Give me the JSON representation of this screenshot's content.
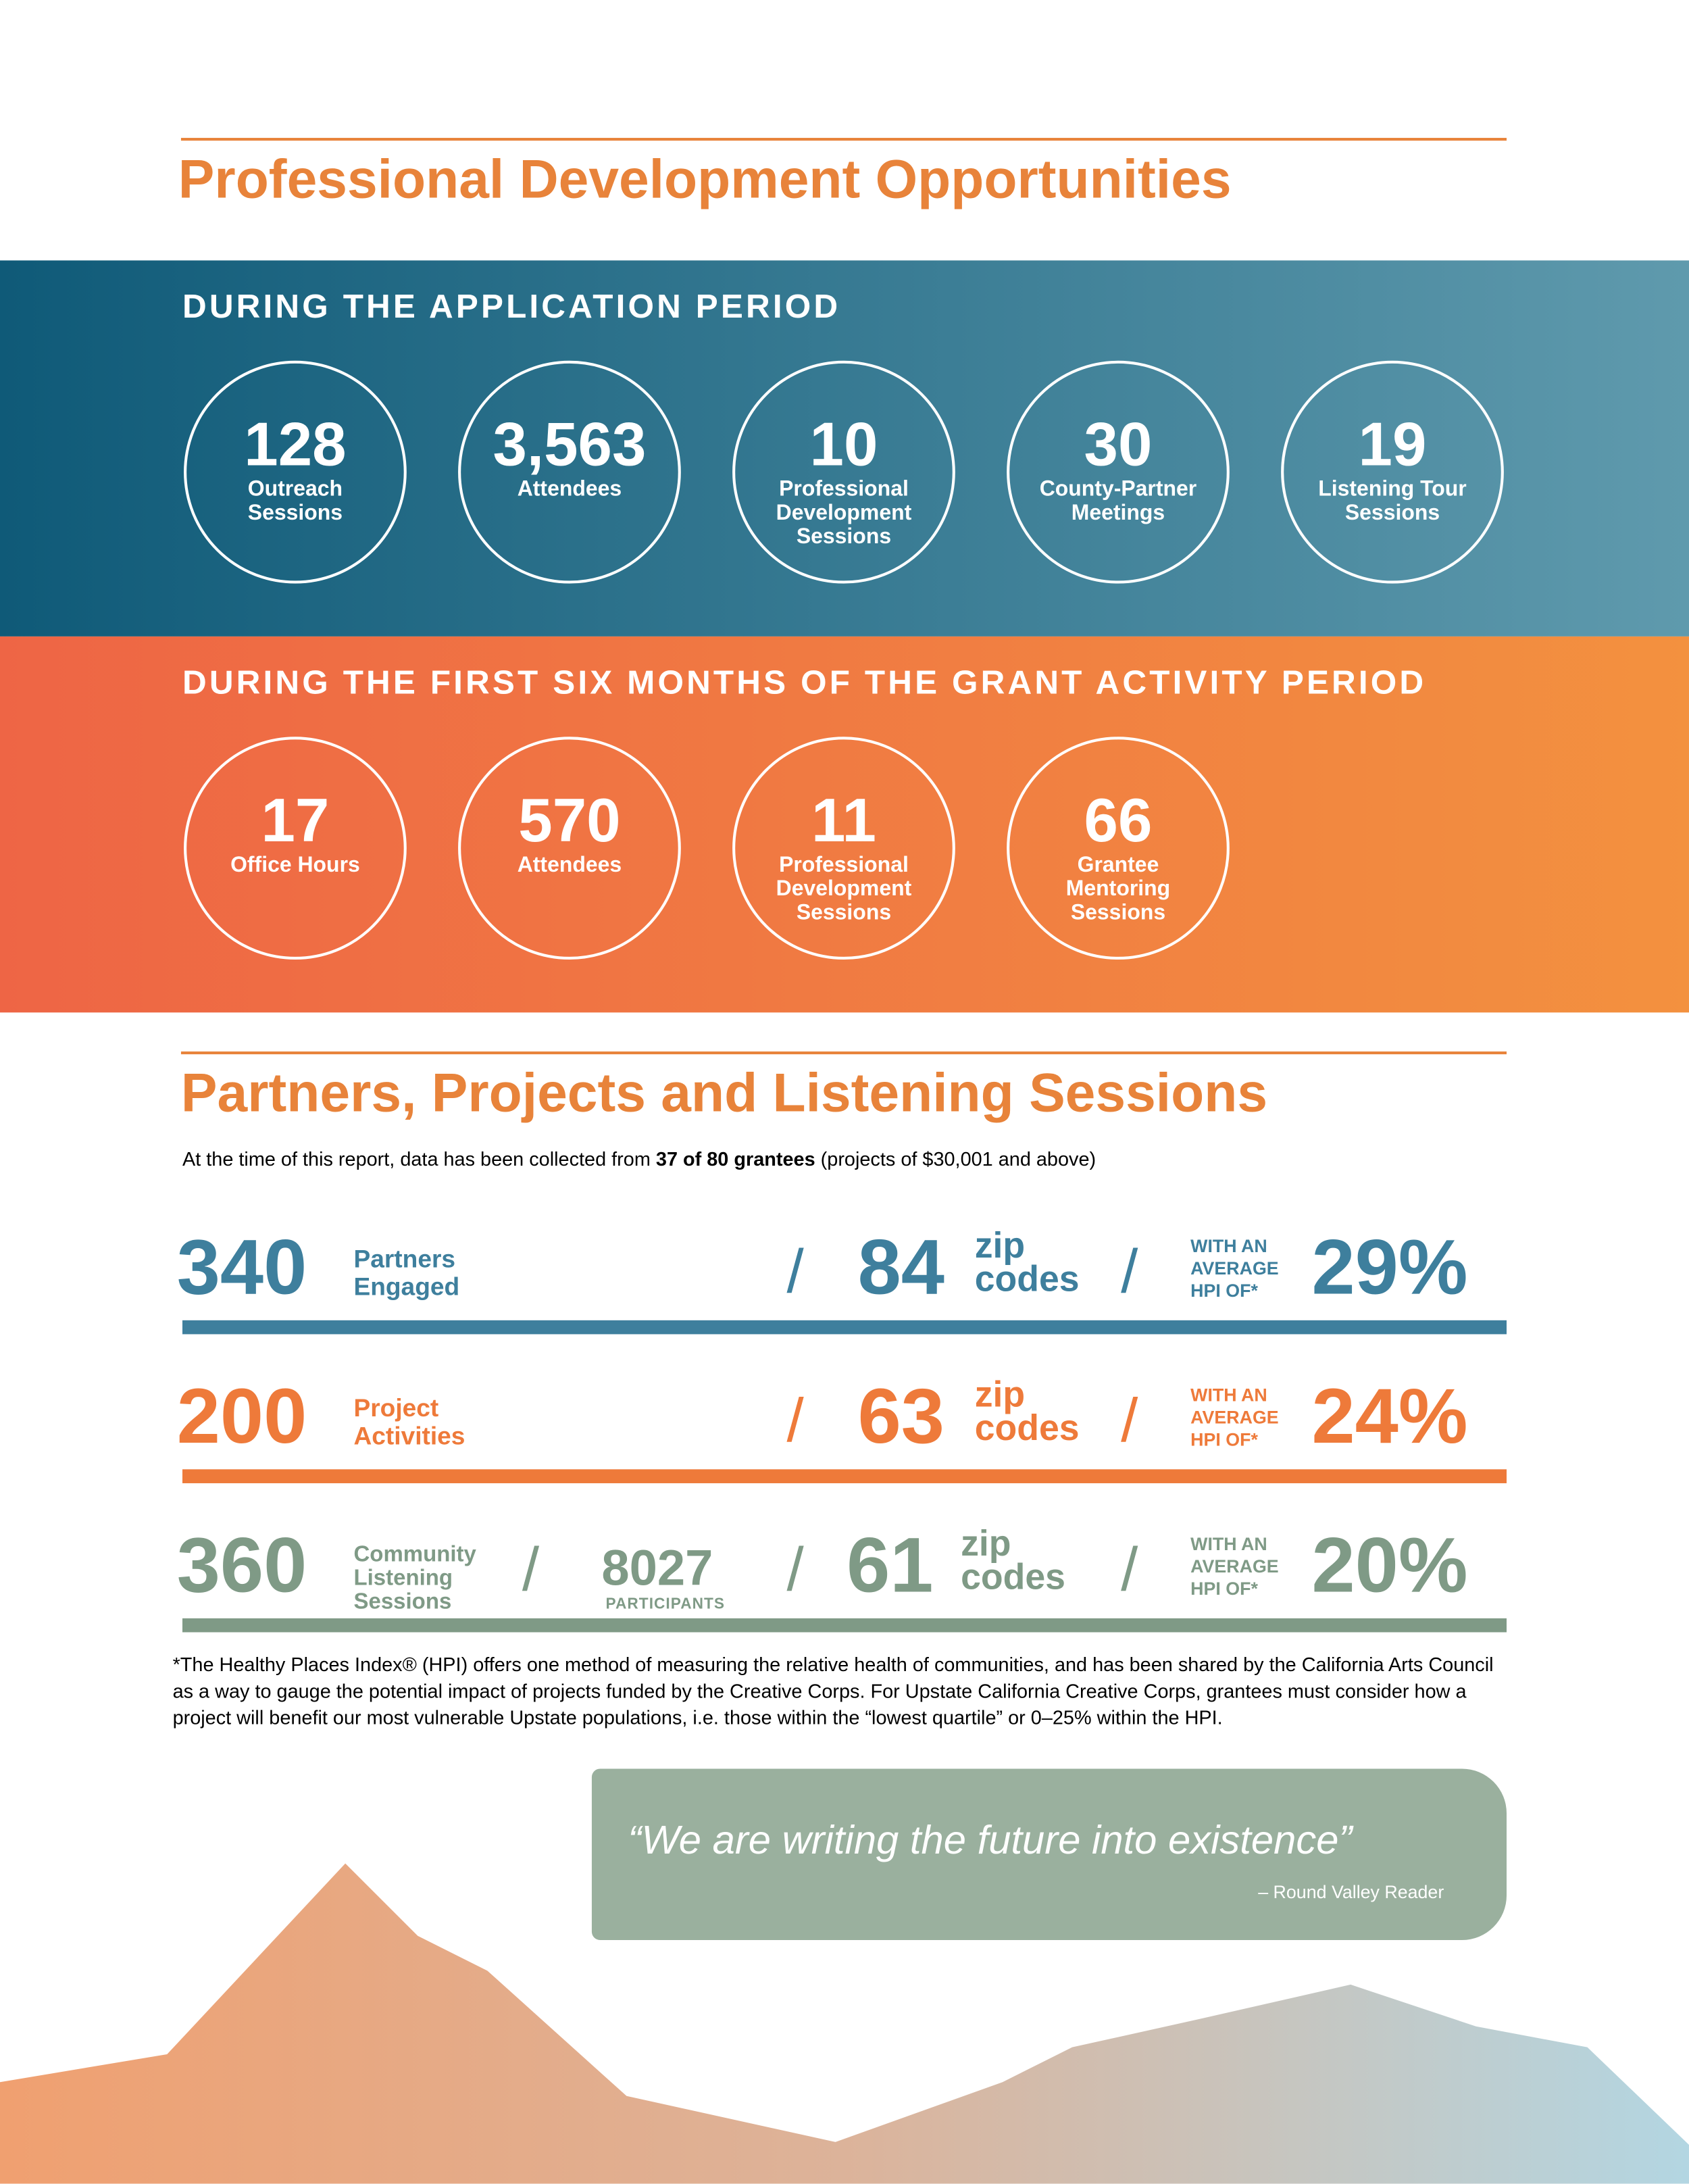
{
  "professional_development": {
    "title": "Professional Development Opportunities",
    "application_period": {
      "heading": "DURING THE APPLICATION PERIOD",
      "stats": [
        {
          "value": "128",
          "label": [
            "Outreach",
            "Sessions"
          ]
        },
        {
          "value": "3,563",
          "label": [
            "Attendees"
          ]
        },
        {
          "value": "10",
          "label": [
            "Professional",
            "Development",
            "Sessions"
          ]
        },
        {
          "value": "30",
          "label": [
            "County-Partner",
            "Meetings"
          ]
        },
        {
          "value": "19",
          "label": [
            "Listening Tour",
            "Sessions"
          ]
        }
      ]
    },
    "grant_period": {
      "heading": "DURING THE FIRST SIX MONTHS OF THE GRANT ACTIVITY PERIOD",
      "stats": [
        {
          "value": "17",
          "label": [
            "Office Hours"
          ]
        },
        {
          "value": "570",
          "label": [
            "Attendees"
          ]
        },
        {
          "value": "11",
          "label": [
            "Professional",
            "Development",
            "Sessions"
          ]
        },
        {
          "value": "66",
          "label": [
            "Grantee",
            "Mentoring",
            "Sessions"
          ]
        }
      ]
    }
  },
  "partners": {
    "title": "Partners, Projects and Listening Sessions",
    "intro": {
      "before": "At the time of this report, data has been collected from ",
      "bold": "37 of 80 grantees",
      "after": " (projects of $30,001 and above)"
    },
    "separator": "/",
    "rows": [
      {
        "value": "340",
        "label": [
          "Partners",
          "Engaged"
        ],
        "zip": "84",
        "zip_label": [
          "zip",
          "codes"
        ],
        "hpi_label": [
          "WITH AN",
          "AVERAGE",
          "HPI OF*"
        ],
        "hpi": "29%"
      },
      {
        "value": "200",
        "label": [
          "Project",
          "Activities"
        ],
        "zip": "63",
        "zip_label": [
          "zip",
          "codes"
        ],
        "hpi_label": [
          "WITH AN",
          "AVERAGE",
          "HPI OF*"
        ],
        "hpi": "24%"
      },
      {
        "value": "360",
        "label": [
          "Community",
          "Listening",
          "Sessions"
        ],
        "participants": "8027",
        "participants_label": "PARTICIPANTS",
        "zip": "61",
        "zip_label": [
          "zip",
          "codes"
        ],
        "hpi_label": [
          "WITH AN",
          "AVERAGE",
          "HPI OF*"
        ],
        "hpi": "20%"
      }
    ],
    "footnote": "*The Healthy Places Index® (HPI) offers one method of measuring the relative health of communities, and has been shared by the California Arts Council as a way to gauge the potential impact of projects funded by the Creative Corps. For Upstate California Creative Corps, grantees must consider how a project will benefit our most vulnerable Upstate populations, i.e. those within the “lowest quartile” or 0–25% within the HPI."
  },
  "quote": {
    "text": "“We are writing the future into existence”",
    "attribution": "– Round Valley Reader"
  }
}
